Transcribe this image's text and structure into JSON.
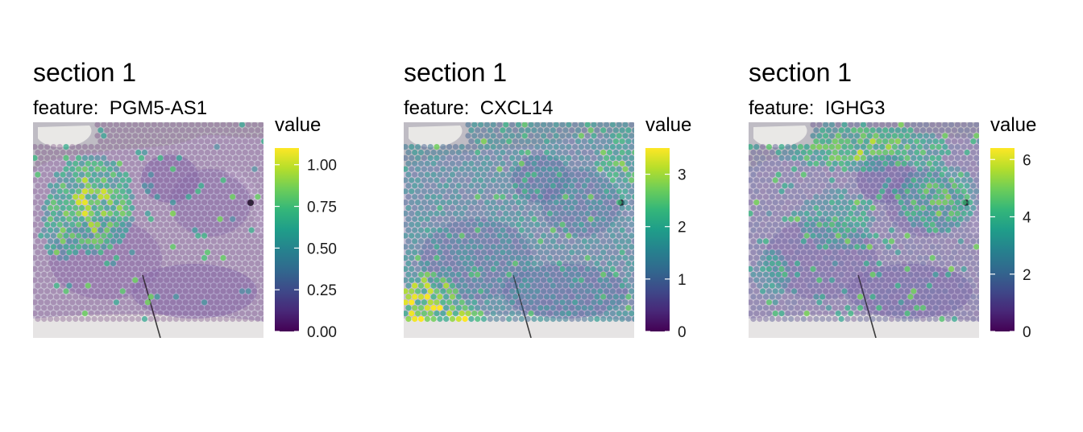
{
  "chart_data": [
    {
      "type": "heatmap",
      "title": "section 1",
      "subtitle_prefix": "feature:  ",
      "feature": "PGM5-AS1",
      "legend_title": "value",
      "scale": {
        "min": 0,
        "max": 1.1,
        "ticks": [
          0.0,
          0.25,
          0.5,
          0.75,
          1.0
        ],
        "tick_labels": [
          "0.00",
          "0.25",
          "0.50",
          "0.75",
          "1.00"
        ]
      },
      "hotspots": [
        {
          "cx": 0.26,
          "cy": 0.38,
          "rx": 0.18,
          "ry": 0.23,
          "value": 0.9
        },
        {
          "cx": 0.12,
          "cy": 0.46,
          "rx": 0.08,
          "ry": 0.18,
          "value": 0.8
        }
      ],
      "background_value": 0.0,
      "note_spots": 0.06
    },
    {
      "type": "heatmap",
      "title": "section 1",
      "subtitle_prefix": "feature:  ",
      "feature": "CXCL14",
      "legend_title": "value",
      "scale": {
        "min": 0,
        "max": 3.5,
        "ticks": [
          0,
          1,
          2,
          3
        ],
        "tick_labels": [
          "0",
          "1",
          "2",
          "3"
        ]
      },
      "hotspots": [
        {
          "cx": 0.1,
          "cy": 0.86,
          "rx": 0.16,
          "ry": 0.18,
          "value": 3.2
        },
        {
          "cx": 0.25,
          "cy": 0.92,
          "rx": 0.12,
          "ry": 0.07,
          "value": 3.3
        },
        {
          "cx": 0.95,
          "cy": 0.2,
          "rx": 0.12,
          "ry": 0.18,
          "value": 2.4
        }
      ],
      "background_value": 1.5,
      "note_spots": 0.1
    },
    {
      "type": "heatmap",
      "title": "section 1",
      "subtitle_prefix": "feature:  ",
      "feature": "IGHG3",
      "legend_title": "value",
      "scale": {
        "min": 0,
        "max": 6.4,
        "ticks": [
          0,
          2,
          4,
          6
        ],
        "tick_labels": [
          "0",
          "2",
          "4",
          "6"
        ]
      },
      "hotspots": [
        {
          "cx": 0.5,
          "cy": 0.12,
          "rx": 0.38,
          "ry": 0.1,
          "value": 5.0
        },
        {
          "cx": 0.82,
          "cy": 0.35,
          "rx": 0.18,
          "ry": 0.16,
          "value": 4.6
        },
        {
          "cx": 0.38,
          "cy": 0.45,
          "rx": 0.16,
          "ry": 0.14,
          "value": 4.0
        },
        {
          "cx": 0.1,
          "cy": 0.7,
          "rx": 0.08,
          "ry": 0.12,
          "value": 3.6
        }
      ],
      "background_value": 1.2,
      "note_spots": 0.12
    }
  ]
}
